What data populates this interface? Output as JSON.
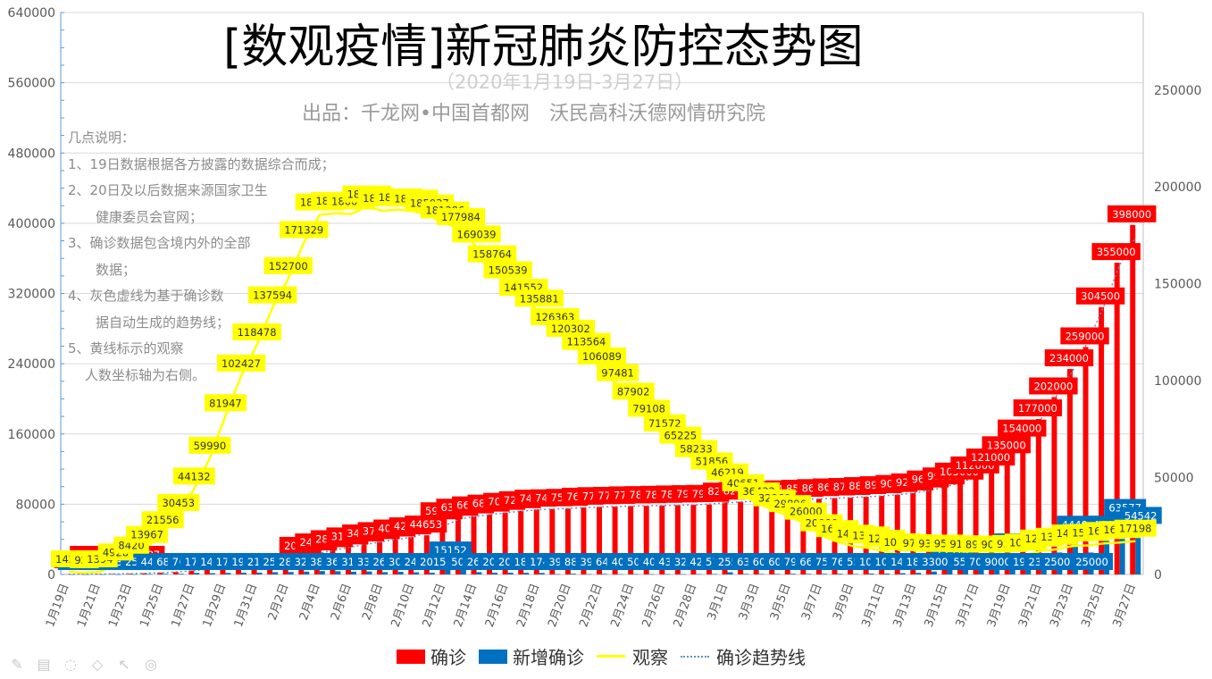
{
  "title": "[数观疫情]新冠肺炎防控态势图",
  "subtitle": "（2020年1月19日-3月27日）",
  "producer": "出品：千龙网•中国首都网　沃民高科沃德网情研究院",
  "notes": [
    "几点说明：",
    "1、19日数据根据各方披露的数据综合而成；",
    "2、20日及以后数据来源国家卫生",
    "　健康委员会官网；",
    "3、确诊数据包含境内外的全部",
    "　数据；",
    "4、灰色虚线为基于确诊数",
    "　据自动生成的趋势线；",
    "5、黄线标示的观察",
    "　人数坐标轴为右侧。"
  ],
  "legend": {
    "confirmed": "确诊",
    "new_confirmed": "新增确诊",
    "observation": "观察",
    "trend": "确诊趋势线"
  },
  "colors": {
    "confirmed": "#ff0000",
    "new_confirmed": "#0070c0",
    "observation": "#ffff00",
    "trend": "#5b8fc7",
    "grid": "#d9d9d9"
  },
  "toolbar_icons": [
    "pen-icon",
    "image-icon",
    "lasso-icon",
    "eraser-icon",
    "pointer-icon",
    "camera-icon"
  ],
  "chart_data": {
    "type": "bar",
    "ylim": [
      0,
      640000
    ],
    "yticks": [
      "0",
      "80000",
      "160000",
      "240000",
      "320000",
      "400000",
      "480000",
      "560000",
      "640000"
    ],
    "y2lim": [
      0,
      290000
    ],
    "y2ticks": [
      "0",
      "50000",
      "100000",
      "150000",
      "200000",
      "250000"
    ],
    "xticks": [
      "1月19日",
      "1月21日",
      "1月23日",
      "1月25日",
      "1月27日",
      "1月29日",
      "1月31日",
      "2月2日",
      "2月4日",
      "2月6日",
      "2月8日",
      "2月10日",
      "2月12日",
      "2月14日",
      "2月16日",
      "2月18日",
      "2月20日",
      "2月22日",
      "2月24日",
      "2月26日",
      "2月28日",
      "3月1日",
      "3月3日",
      "3月5日",
      "3月7日",
      "3月9日",
      "3月11日",
      "3月13日",
      "3月15日",
      "3月17日",
      "3月19日",
      "3月21日",
      "3月23日",
      "3月25日",
      "3月27日"
    ],
    "x": [
      "1月19日",
      "1月20日",
      "1月21日",
      "1月22日",
      "1月23日",
      "1月24日",
      "1月25日",
      "1月26日",
      "1月27日",
      "1月28日",
      "1月29日",
      "1月30日",
      "1月31日",
      "2月1日",
      "2月2日",
      "2月3日",
      "2月4日",
      "2月5日",
      "2月6日",
      "2月7日",
      "2月8日",
      "2月9日",
      "2月10日",
      "2月11日",
      "2月12日",
      "2月13日",
      "2月14日",
      "2月15日",
      "2月16日",
      "2月17日",
      "2月18日",
      "2月19日",
      "2月20日",
      "2月21日",
      "2月22日",
      "2月23日",
      "2月24日",
      "2月25日",
      "2月26日",
      "2月27日",
      "2月28日",
      "2月29日",
      "3月1日",
      "3月2日",
      "3月3日",
      "3月4日",
      "3月5日",
      "3月6日",
      "3月7日",
      "3月8日",
      "3月9日",
      "3月10日",
      "3月11日",
      "3月12日",
      "3月13日",
      "3月14日",
      "3月15日",
      "3月16日",
      "3月17日",
      "3月18日",
      "3月19日",
      "3月20日",
      "3月21日",
      "3月22日",
      "3月23日",
      "3月24日",
      "3月25日",
      "3月26日",
      "3月27日"
    ],
    "series": [
      {
        "name": "确诊",
        "axis": "left",
        "values": [
          218,
          291,
          440,
          571,
          830,
          1287,
          1975,
          2744,
          4515,
          5974,
          7711,
          9692,
          11791,
          14380,
          17205,
          20438,
          24324,
          28018,
          31161,
          34546,
          37198,
          40171,
          42638,
          44653,
          59804,
          63851,
          66492,
          68500,
          70548,
          72436,
          74185,
          74576,
          75077,
          76398,
          77041,
          77361,
          77924,
          78174,
          78565,
          78959,
          79300,
          79614,
          82170,
          82800,
          83400,
          84000,
          84790,
          85450,
          86200,
          86966,
          87521,
          88500,
          89500,
          90907,
          92700,
          96000,
          99500,
          105000,
          112000,
          121000,
          135000,
          154000,
          177000,
          202000,
          234000,
          259000,
          304500,
          355000,
          398000
        ]
      },
      {
        "name": "新增确诊",
        "axis": "left",
        "values": [
          141,
          77,
          149,
          131,
          259,
          444,
          688,
          769,
          1771,
          1459,
          1737,
          1982,
          2102,
          2590,
          2829,
          3235,
          3887,
          3694,
          3143,
          3385,
          2652,
          3040,
          2478,
          2015,
          15152,
          5090,
          2641,
          2009,
          2048,
          1886,
          1749,
          392,
          889,
          397,
          648,
          409,
          508,
          406,
          433,
          327,
          427,
          573,
          2556,
          630,
          600,
          600,
          790,
          660,
          750,
          766,
          555,
          1000,
          1000,
          1407,
          1800,
          3300,
          12578,
          5500,
          7000,
          9000,
          24470,
          19000,
          23000,
          25000,
          44490,
          25000,
          44431,
          63577,
          54542
        ]
      },
      {
        "name": "观察",
        "axis": "right",
        "values": [
          1420,
          922,
          1394,
          4928,
          8420,
          13967,
          21556,
          30453,
          44132,
          59990,
          81947,
          102427,
          118478,
          137594,
          152700,
          171329,
          185555,
          186354,
          186045,
          189660,
          187728,
          188183,
          187518,
          185037,
          181386,
          177984,
          169039,
          158764,
          150539,
          141552,
          135881,
          126363,
          120302,
          113564,
          106089,
          97481,
          87902,
          79108,
          71572,
          65225,
          58233,
          51856,
          46219,
          40651,
          36432,
          32869,
          29896,
          26000,
          20000,
          16982,
          14607,
          13701,
          12000,
          10189,
          9700,
          9351,
          9500,
          9144,
          8989,
          9000,
          9300,
          10000,
          12077,
          13000,
          14714,
          15000,
          16005,
          16500,
          17198
        ]
      }
    ],
    "bar_value_labels": {
      "confirmed_first": [
        "218",
        "291",
        "440",
        "571",
        "830",
        "1287"
      ],
      "confirmed_shown": [
        "20438",
        "24324",
        "28018",
        "31161",
        "34546",
        "37198",
        "40171",
        "42638",
        "44653",
        "59804",
        "63851",
        "66492",
        "68500",
        "70548",
        "72436",
        "74185",
        "74576",
        "75077",
        "76398",
        "77041",
        "77361",
        "77924",
        "78174",
        "78565",
        "78959",
        "79300",
        "79614",
        "82170",
        "82800",
        "83400",
        "84000",
        "84790",
        "85450",
        "86200",
        "86966",
        "87521",
        "88500",
        "89500",
        "90907",
        "92700",
        "96000",
        "99500",
        "105000",
        "112000",
        "121000",
        "135000",
        "154000",
        "177000",
        "202000",
        "234000",
        "259000",
        "304500",
        "355000",
        "398000"
      ],
      "new_shown": [
        "15152",
        "12578",
        "24470",
        "44490",
        "44431",
        "63577",
        "54542"
      ]
    },
    "xlabel": "",
    "ylabel": "",
    "legend_position": "bottom",
    "grid": true
  }
}
